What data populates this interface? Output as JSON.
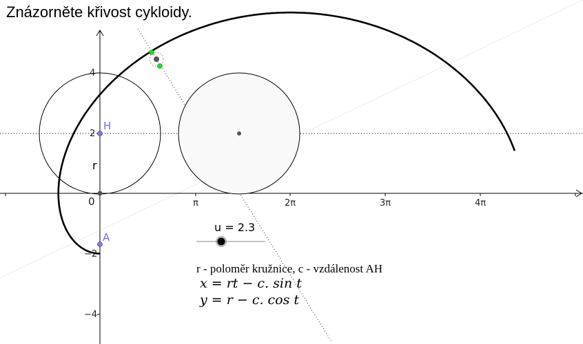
{
  "title": "Znázorněte křivost cykloidy.",
  "axes": {
    "x_ticks": [
      "π",
      "2π",
      "3π",
      "4π"
    ],
    "y_ticks": [
      "4",
      "2",
      "−2",
      "−4"
    ],
    "origin": "0"
  },
  "points": {
    "H": "H",
    "A": "A"
  },
  "radius_label": "r",
  "slider": {
    "name": "u",
    "value": 2.3,
    "label": "u = 2.3"
  },
  "legend_note": "r - poloměr kružnice, c - vzdálenost AH",
  "equations": {
    "x": "x = rt − c. sin t",
    "y": "y = r − c. cos t"
  },
  "colors": {
    "point_label": "#6c6cff",
    "curve": "#000000",
    "highlight_point": "#00dd00"
  }
}
